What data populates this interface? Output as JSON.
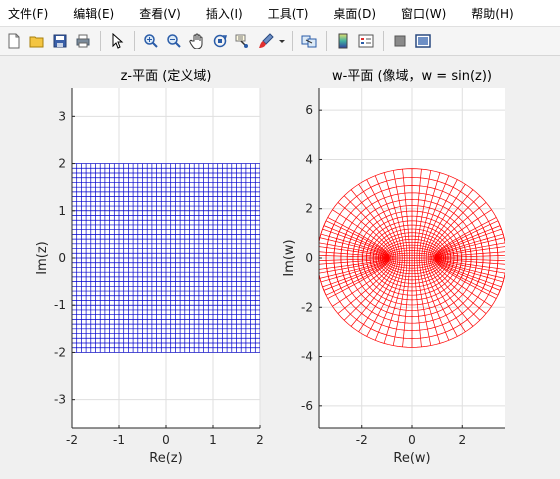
{
  "menubar": {
    "items": [
      {
        "label": "文件(F)"
      },
      {
        "label": "编辑(E)"
      },
      {
        "label": "查看(V)"
      },
      {
        "label": "插入(I)"
      },
      {
        "label": "工具(T)"
      },
      {
        "label": "桌面(D)"
      },
      {
        "label": "窗口(W)"
      },
      {
        "label": "帮助(H)"
      }
    ]
  },
  "toolbar": {
    "icons": [
      "new-figure-icon",
      "open-file-icon",
      "save-icon",
      "print-icon",
      "pointer-icon",
      "zoom-in-icon",
      "zoom-out-icon",
      "pan-icon",
      "rotate-3d-icon",
      "data-cursor-icon",
      "brush-icon",
      "link-plot-icon",
      "colorbar-icon",
      "legend-icon",
      "hide-plot-tools-icon",
      "show-plot-tools-icon"
    ]
  },
  "chart_data": [
    {
      "type": "line",
      "title": "z-平面 (定义域)",
      "xlabel": "Re(z)",
      "ylabel": "Im(z)",
      "xlim": [
        -2,
        2
      ],
      "ylim": [
        -3.6,
        3.6
      ],
      "xticks": [
        "-2",
        "-1",
        "0",
        "1",
        "2"
      ],
      "yticks": [
        "3",
        "2",
        "1",
        "0",
        "-1",
        "-2",
        "-3"
      ],
      "xtick_values": [
        -2,
        -1,
        0,
        1,
        2
      ],
      "ytick_values": [
        3,
        2,
        1,
        0,
        -1,
        -2,
        -3
      ],
      "grid": true,
      "series": [
        {
          "color": "#0000cc",
          "description_lines_x": [
            -2,
            2
          ],
          "description_lines_y": [
            -2,
            2
          ],
          "n_lines": 41
        }
      ]
    },
    {
      "type": "line",
      "title": "w-平面 (像域，w = sin(z))",
      "xlabel": "Re(w)",
      "ylabel": "Im(w)",
      "xlim": [
        -3.7,
        3.7
      ],
      "ylim": [
        -6.9,
        6.9
      ],
      "xticks": [
        "-2",
        "0",
        "2"
      ],
      "yticks": [
        "6",
        "4",
        "2",
        "0",
        "-2",
        "-4",
        "-6"
      ],
      "xtick_values": [
        -2,
        0,
        2
      ],
      "ytick_values": [
        6,
        4,
        2,
        0,
        -2,
        -4,
        -6
      ],
      "grid": true,
      "series": [
        {
          "color": "#ff0000",
          "function": "sin(z)"
        }
      ]
    }
  ],
  "colors": {
    "axes_bg": "#ffffff",
    "grid": "#dfdfdf",
    "left_series": "#0000cc",
    "right_series": "#ff0000"
  }
}
